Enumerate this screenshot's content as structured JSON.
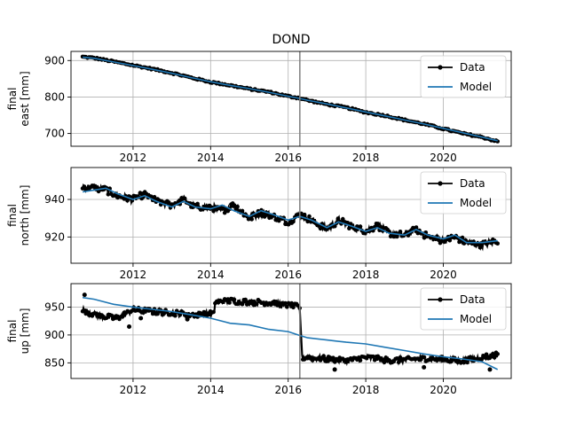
{
  "title": "DOND",
  "legend": {
    "data_label": "Data",
    "model_label": "Model"
  },
  "colors": {
    "data": "#000000",
    "model": "#1f77b4",
    "grid": "#b0b0b0",
    "vline": "#808080"
  },
  "chart_data": [
    {
      "type": "line",
      "ylabel_line1": "final",
      "ylabel_line2": "east [mm]",
      "xlim": [
        2010.4,
        2021.75
      ],
      "ylim": [
        665,
        925
      ],
      "xticks": [
        2012,
        2014,
        2016,
        2018,
        2020
      ],
      "yticks": [
        700,
        800,
        900
      ],
      "grid": true,
      "legend_position": "upper right",
      "event_line_x": 2016.3,
      "series": [
        {
          "name": "Data",
          "x": [
            2010.7,
            2011.0,
            2011.5,
            2012.0,
            2012.5,
            2013.0,
            2013.5,
            2014.0,
            2014.5,
            2015.0,
            2015.5,
            2016.0,
            2016.3,
            2016.5,
            2017.0,
            2017.5,
            2018.0,
            2018.5,
            2019.0,
            2019.5,
            2020.0,
            2020.5,
            2021.0,
            2021.4
          ],
          "y": [
            910,
            907,
            897,
            887,
            877,
            866,
            853,
            841,
            832,
            822,
            814,
            802,
            797,
            791,
            780,
            771,
            758,
            749,
            737,
            726,
            713,
            700,
            690,
            678
          ]
        },
        {
          "name": "Model",
          "x": [
            2010.7,
            2011.0,
            2011.5,
            2012.0,
            2012.5,
            2013.0,
            2013.5,
            2014.0,
            2014.5,
            2015.0,
            2015.5,
            2016.0,
            2016.3,
            2016.5,
            2017.0,
            2017.5,
            2018.0,
            2018.5,
            2019.0,
            2019.5,
            2020.0,
            2020.5,
            2021.0,
            2021.4
          ],
          "y": [
            909,
            906,
            896,
            886,
            876,
            865,
            853,
            842,
            832,
            823,
            813,
            802,
            796,
            791,
            781,
            770,
            759,
            748,
            737,
            726,
            714,
            702,
            690,
            680
          ]
        }
      ]
    },
    {
      "type": "line",
      "ylabel_line1": "final",
      "ylabel_line2": "north [mm]",
      "xlim": [
        2010.4,
        2021.75
      ],
      "ylim": [
        906,
        957
      ],
      "xticks": [
        2012,
        2014,
        2016,
        2018,
        2020
      ],
      "yticks": [
        920,
        940
      ],
      "grid": true,
      "legend_position": "upper right",
      "event_line_x": 2016.3,
      "series": [
        {
          "name": "Data",
          "x": [
            2010.7,
            2011.0,
            2011.3,
            2011.6,
            2012.0,
            2012.3,
            2012.6,
            2013.0,
            2013.3,
            2013.6,
            2014.0,
            2014.3,
            2014.6,
            2015.0,
            2015.3,
            2015.6,
            2016.0,
            2016.3,
            2016.6,
            2017.0,
            2017.3,
            2017.6,
            2018.0,
            2018.3,
            2018.6,
            2019.0,
            2019.3,
            2019.6,
            2020.0,
            2020.3,
            2020.6,
            2021.0,
            2021.4
          ],
          "y": [
            947,
            946,
            945,
            942,
            940,
            943,
            939,
            937,
            940,
            936,
            936,
            934,
            937,
            930,
            933,
            931,
            928,
            932,
            929,
            924,
            929,
            926,
            923,
            926,
            922,
            921,
            924,
            920,
            918,
            920,
            917,
            916,
            918
          ]
        },
        {
          "name": "Model",
          "x": [
            2010.7,
            2011.0,
            2011.3,
            2011.6,
            2012.0,
            2012.3,
            2012.6,
            2013.0,
            2013.3,
            2013.6,
            2014.0,
            2014.3,
            2014.6,
            2015.0,
            2015.3,
            2015.6,
            2016.0,
            2016.3,
            2016.6,
            2017.0,
            2017.3,
            2017.6,
            2018.0,
            2018.3,
            2018.6,
            2019.0,
            2019.3,
            2019.6,
            2020.0,
            2020.3,
            2020.6,
            2021.0,
            2021.4
          ],
          "y": [
            944,
            945,
            946,
            943,
            940,
            942,
            939,
            936,
            939,
            936,
            935,
            937,
            934,
            931,
            934,
            932,
            929,
            931,
            929,
            925,
            928,
            926,
            923,
            925,
            922,
            921,
            924,
            921,
            919,
            921,
            917,
            917,
            918
          ]
        }
      ]
    },
    {
      "type": "line",
      "ylabel_line1": "final",
      "ylabel_line2": "up [mm]",
      "xlim": [
        2010.4,
        2021.75
      ],
      "ylim": [
        822,
        992
      ],
      "xticks": [
        2012,
        2014,
        2016,
        2018,
        2020
      ],
      "yticks": [
        850,
        900,
        950
      ],
      "grid": true,
      "legend_position": "upper right",
      "event_line_x": 2016.3,
      "series": [
        {
          "name": "Data",
          "x": [
            2010.7,
            2011.0,
            2011.3,
            2011.6,
            2012.0,
            2012.5,
            2013.0,
            2013.5,
            2014.0,
            2014.1,
            2014.5,
            2015.0,
            2015.5,
            2016.0,
            2016.3,
            2016.35,
            2017.0,
            2017.5,
            2018.0,
            2018.5,
            2019.0,
            2019.5,
            2020.0,
            2020.5,
            2021.0,
            2021.4
          ],
          "y": [
            945,
            937,
            932,
            930,
            945,
            942,
            940,
            936,
            938,
            960,
            961,
            959,
            958,
            953,
            950,
            860,
            857,
            853,
            860,
            855,
            855,
            858,
            856,
            853,
            860,
            865
          ]
        },
        {
          "name": "Model",
          "x": [
            2010.7,
            2011.0,
            2011.5,
            2012.0,
            2012.5,
            2013.0,
            2013.5,
            2014.0,
            2014.5,
            2015.0,
            2015.5,
            2016.0,
            2016.3,
            2016.5,
            2017.0,
            2017.5,
            2018.0,
            2018.5,
            2019.0,
            2019.5,
            2020.0,
            2020.5,
            2021.0,
            2021.4
          ],
          "y": [
            967,
            964,
            955,
            950,
            946,
            942,
            936,
            930,
            921,
            918,
            910,
            906,
            899,
            895,
            891,
            887,
            884,
            878,
            872,
            866,
            861,
            857,
            852,
            838
          ]
        }
      ]
    }
  ]
}
